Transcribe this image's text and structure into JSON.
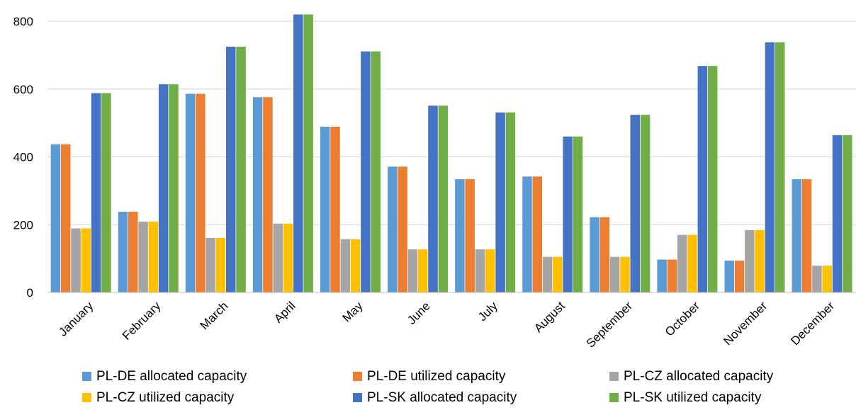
{
  "chart_data": {
    "type": "bar",
    "title": "",
    "xlabel": "",
    "ylabel": "",
    "ylim": [
      0,
      820
    ],
    "yticks": [
      0,
      200,
      400,
      600,
      800
    ],
    "grid": true,
    "legend_position": "bottom",
    "categories": [
      "January",
      "February",
      "March",
      "April",
      "May",
      "June",
      "July",
      "August",
      "September",
      "October",
      "November",
      "December"
    ],
    "series": [
      {
        "name": "PL-DE allocated capacity",
        "color": "#5B9BD5",
        "values": [
          437,
          238,
          586,
          576,
          489,
          371,
          334,
          342,
          222,
          97,
          94,
          334
        ]
      },
      {
        "name": "PL-DE utilized capacity",
        "color": "#ED7D31",
        "values": [
          437,
          238,
          586,
          576,
          489,
          371,
          334,
          342,
          222,
          97,
          94,
          334
        ]
      },
      {
        "name": "PL-CZ allocated capacity",
        "color": "#A5A5A5",
        "values": [
          189,
          209,
          161,
          203,
          157,
          127,
          127,
          105,
          105,
          170,
          184,
          79
        ]
      },
      {
        "name": "PL-CZ utilized capacity",
        "color": "#FFC000",
        "values": [
          189,
          209,
          161,
          203,
          157,
          127,
          127,
          105,
          105,
          170,
          184,
          79
        ]
      },
      {
        "name": "PL-SK allocated capacity",
        "color": "#4472C4",
        "values": [
          588,
          614,
          725,
          820,
          711,
          551,
          531,
          460,
          524,
          668,
          738,
          464
        ]
      },
      {
        "name": "PL-SK utilized capacity",
        "color": "#70AD47",
        "values": [
          588,
          614,
          725,
          820,
          711,
          551,
          531,
          460,
          524,
          668,
          738,
          464
        ]
      }
    ]
  }
}
